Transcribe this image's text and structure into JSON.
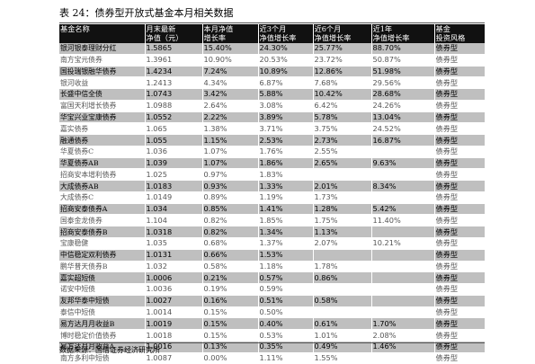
{
  "title": "表 24：债券型开放式基金本月相关数据",
  "headers": [
    [
      "基金名称",
      ""
    ],
    [
      "月末最新",
      "净值（元）"
    ],
    [
      "本月净值",
      "增长率"
    ],
    [
      "近3个月",
      "净值增长率"
    ],
    [
      "近6个月",
      "净值增长率"
    ],
    [
      "近1年",
      "净值增长率"
    ],
    [
      "基金",
      "投资风格"
    ]
  ],
  "rows": [
    [
      "银河银泰理财分红",
      "1.5865",
      "15.40%",
      "24.30%",
      "25.77%",
      "88.70%",
      "债券型"
    ],
    [
      "南方宝元债券",
      "1.3961",
      "10.90%",
      "20.53%",
      "23.72%",
      "50.87%",
      "债券型"
    ],
    [
      "国投瑞银融华债券",
      "1.4234",
      "7.24%",
      "10.89%",
      "12.86%",
      "51.98%",
      "债券型"
    ],
    [
      "银河收益",
      "1.2413",
      "4.34%",
      "6.87%",
      "7.68%",
      "29.56%",
      "债券型"
    ],
    [
      "长盛中信全债",
      "1.0743",
      "3.42%",
      "5.88%",
      "10.42%",
      "28.68%",
      "债券型"
    ],
    [
      "富国天利增长债券",
      "1.0988",
      "2.64%",
      "3.08%",
      "6.42%",
      "24.26%",
      "债券型"
    ],
    [
      "华宝兴业宝康债券",
      "1.0552",
      "2.22%",
      "3.89%",
      "5.78%",
      "13.04%",
      "债券型"
    ],
    [
      "嘉实债券",
      "1.065",
      "1.38%",
      "3.71%",
      "3.75%",
      "24.52%",
      "债券型"
    ],
    [
      "融通债券",
      "1.055",
      "1.15%",
      "2.53%",
      "2.73%",
      "16.87%",
      "债券型"
    ],
    [
      "华夏债券C",
      "1.036",
      "1.07%",
      "1.76%",
      "2.55%",
      "",
      "债券型"
    ],
    [
      "华夏债券AB",
      "1.039",
      "1.07%",
      "1.86%",
      "2.65%",
      "9.63%",
      "债券型"
    ],
    [
      "招商安本增利债券",
      "1.025",
      "0.97%",
      "1.83%",
      "",
      "",
      "债券型"
    ],
    [
      "大成债券AB",
      "1.0183",
      "0.93%",
      "1.33%",
      "2.01%",
      "8.34%",
      "债券型"
    ],
    [
      "大成债券C",
      "1.0149",
      "0.89%",
      "1.19%",
      "1.73%",
      "",
      "债券型"
    ],
    [
      "招商安泰债券A",
      "1.034",
      "0.85%",
      "1.41%",
      "1.28%",
      "5.42%",
      "债券型"
    ],
    [
      "国泰金龙债券",
      "1.104",
      "0.82%",
      "1.85%",
      "1.75%",
      "11.40%",
      "债券型"
    ],
    [
      "招商安泰债券B",
      "1.0318",
      "0.82%",
      "1.34%",
      "1.13%",
      "",
      "债券型"
    ],
    [
      "宝康稳健",
      "1.035",
      "0.68%",
      "1.37%",
      "2.07%",
      "10.21%",
      "债券型"
    ],
    [
      "中信稳定双利债券",
      "1.0131",
      "0.66%",
      "1.53%",
      "",
      "",
      "债券型"
    ],
    [
      "鹏华普天债券B",
      "1.032",
      "0.58%",
      "1.18%",
      "1.78%",
      "",
      "债券型"
    ],
    [
      "嘉实超短债",
      "1.0006",
      "0.21%",
      "0.57%",
      "0.86%",
      "",
      "债券型"
    ],
    [
      "诺安中短债",
      "1.0036",
      "0.19%",
      "0.59%",
      "",
      "",
      "债券型"
    ],
    [
      "友邦华泰中短债",
      "1.0027",
      "0.16%",
      "0.51%",
      "0.58%",
      "",
      "债券型"
    ],
    [
      "泰信中短债",
      "1.0014",
      "0.15%",
      "0.50%",
      "",
      "",
      "债券型"
    ],
    [
      "易方达月月收益B",
      "1.0019",
      "0.15%",
      "0.40%",
      "0.61%",
      "1.70%",
      "债券型"
    ],
    [
      "博时稳定价值债券",
      "1.0018",
      "0.15%",
      "0.53%",
      "1.01%",
      "2.08%",
      "债券型"
    ],
    [
      "易方达月月收益A",
      "1.0016",
      "0.13%",
      "0.35%",
      "0.49%",
      "1.46%",
      "债券型"
    ],
    [
      "南方多利中短债",
      "1.0087",
      "0.00%",
      "1.11%",
      "1.55%",
      "",
      "债券型"
    ]
  ],
  "source": "数据来源：国信证券经济研究所"
}
